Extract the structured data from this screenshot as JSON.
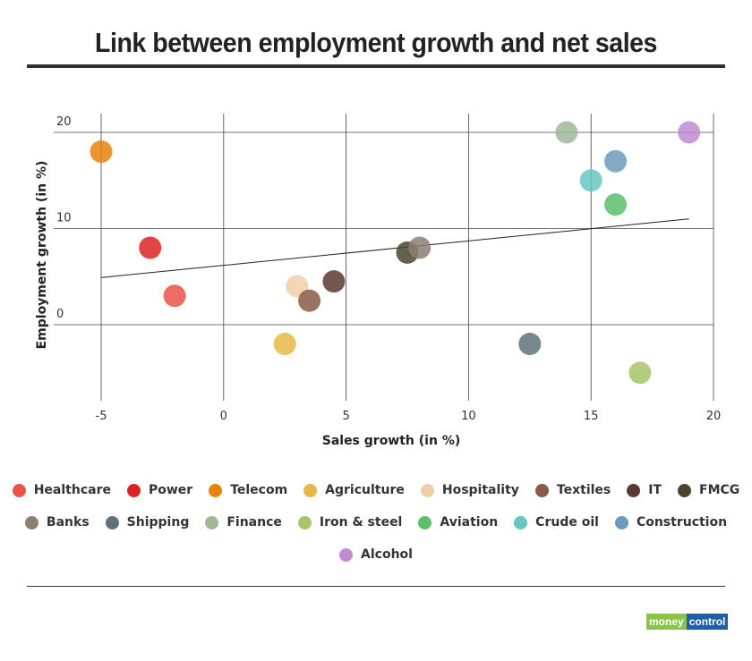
{
  "header": {
    "title": "Link between employment growth and net sales"
  },
  "logo": {
    "part1": "money",
    "part2": "control"
  },
  "chart_data": {
    "type": "scatter",
    "title": "Link between employment growth and net sales",
    "xlabel": "Sales growth (in %)",
    "ylabel": "Employment growth (in %)",
    "xlim": [
      -5,
      20
    ],
    "ylim": [
      -7.5,
      22
    ],
    "xticks": [
      -5,
      0,
      5,
      10,
      15,
      20
    ],
    "yticks": [
      0,
      10,
      20
    ],
    "grid": true,
    "legend_position": "bottom",
    "trendline": {
      "x": [
        -5,
        19
      ],
      "y": [
        4.9,
        11.0
      ]
    },
    "series": [
      {
        "name": "Healthcare",
        "color": "#e8534a",
        "points": [
          [
            -2,
            3
          ]
        ]
      },
      {
        "name": "Power",
        "color": "#dd2222",
        "points": [
          [
            -3,
            8
          ]
        ]
      },
      {
        "name": "Telecom",
        "color": "#e8830d",
        "points": [
          [
            -5,
            18
          ]
        ]
      },
      {
        "name": "Agriculture",
        "color": "#e6b84a",
        "points": [
          [
            2.5,
            -2
          ]
        ]
      },
      {
        "name": "Hospitality",
        "color": "#f1cfa6",
        "points": [
          [
            3,
            4
          ]
        ]
      },
      {
        "name": "Textiles",
        "color": "#8a5a48",
        "points": [
          [
            3.5,
            2.5
          ]
        ]
      },
      {
        "name": "IT",
        "color": "#5a3a30",
        "points": [
          [
            4.5,
            4.5
          ]
        ]
      },
      {
        "name": "FMCG",
        "color": "#4a4530",
        "points": [
          [
            7.5,
            7.5
          ]
        ]
      },
      {
        "name": "Banks",
        "color": "#8b7f72",
        "points": [
          [
            8,
            8
          ]
        ]
      },
      {
        "name": "Shipping",
        "color": "#5f727a",
        "points": [
          [
            12.5,
            -2
          ]
        ]
      },
      {
        "name": "Finance",
        "color": "#9eb898",
        "points": [
          [
            14,
            20
          ]
        ]
      },
      {
        "name": "Iron & steel",
        "color": "#a8c46a",
        "points": [
          [
            17,
            -5
          ]
        ]
      },
      {
        "name": "Aviation",
        "color": "#5cbf6a",
        "points": [
          [
            16,
            12.5
          ]
        ]
      },
      {
        "name": "Crude oil",
        "color": "#66c7c2",
        "points": [
          [
            15,
            15
          ]
        ]
      },
      {
        "name": "Construction",
        "color": "#6c9bbd",
        "points": [
          [
            16,
            17
          ]
        ]
      },
      {
        "name": "Alcohol",
        "color": "#c08cd0",
        "points": [
          [
            19,
            20
          ]
        ]
      }
    ]
  }
}
